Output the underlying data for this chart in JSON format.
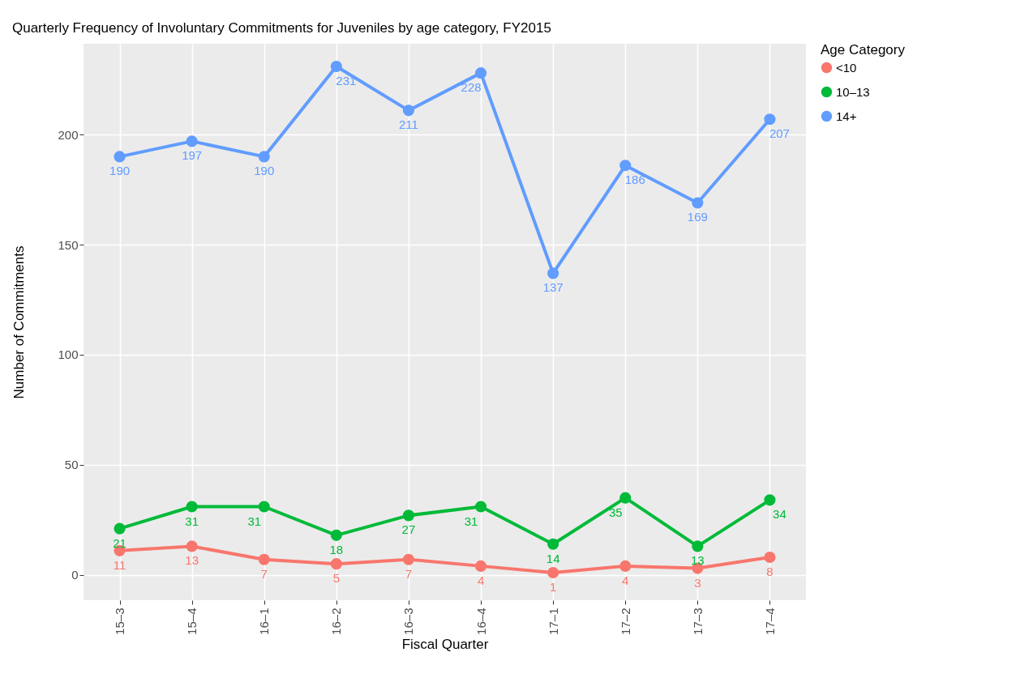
{
  "chart_data": {
    "type": "line",
    "title": "Quarterly Frequency of Involuntary Commitments for Juveniles by age category, FY2015",
    "xlabel": "Fiscal Quarter",
    "ylabel": "Number of Commitments",
    "legend_title": "Age Category",
    "categories": [
      "15–3",
      "15–4",
      "16–1",
      "16–2",
      "16–3",
      "16–4",
      "17–1",
      "17–2",
      "17–3",
      "17–4"
    ],
    "series": [
      {
        "name": "<10",
        "color": "#f8766d",
        "values": [
          11,
          13,
          7,
          5,
          7,
          4,
          1,
          4,
          3,
          8
        ]
      },
      {
        "name": "10–13",
        "color": "#00ba38",
        "values": [
          21,
          31,
          31,
          18,
          27,
          31,
          14,
          35,
          13,
          34
        ]
      },
      {
        "name": "14+",
        "color": "#619cff",
        "values": [
          190,
          197,
          190,
          231,
          211,
          228,
          137,
          186,
          169,
          207
        ]
      }
    ],
    "ylim": [
      -11.5,
      241.3
    ],
    "yticks": [
      0,
      50,
      100,
      150,
      200
    ],
    "grid": true,
    "legend": "right",
    "marker": "circle",
    "line_style": "solid",
    "data_labels": true
  }
}
